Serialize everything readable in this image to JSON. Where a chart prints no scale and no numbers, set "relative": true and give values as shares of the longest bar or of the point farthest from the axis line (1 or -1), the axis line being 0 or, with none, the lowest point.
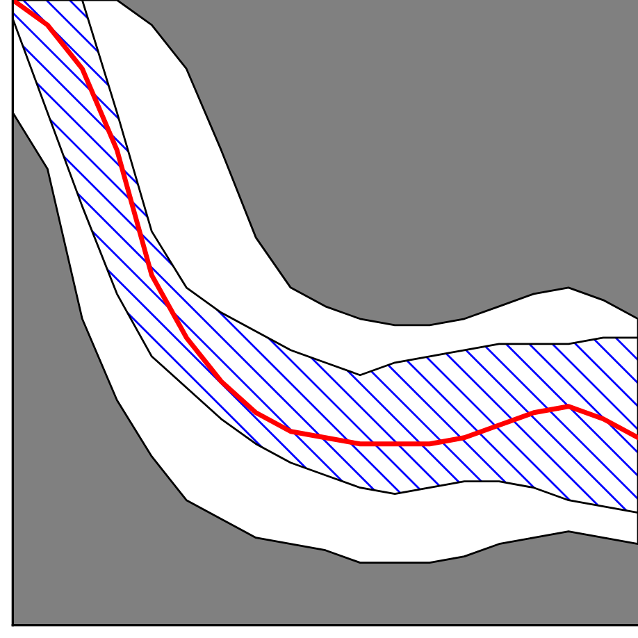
{
  "chart_data": {
    "type": "line",
    "relative": true,
    "categories": [
      null,
      null,
      null,
      null,
      null,
      null,
      null,
      null,
      null,
      null,
      null,
      null,
      null,
      null,
      null,
      null,
      null,
      null,
      null
    ],
    "series": [
      {
        "color": "#ffffff",
        "values": [
          null,
          null,
          null,
          null,
          null,
          null,
          null,
          null,
          null,
          null,
          null,
          null,
          null,
          null,
          null,
          null,
          null,
          null,
          null
        ],
        "upper": [
          1,
          1,
          1,
          1,
          0.96,
          0.89,
          0.76,
          0.62,
          0.54,
          0.51,
          0.49,
          0.48,
          0.48,
          0.49,
          0.51,
          0.53,
          0.54,
          0.52,
          0.49
        ],
        "lower": [
          0.82,
          0.73,
          0.49,
          0.36,
          0.27,
          0.2,
          0.17,
          0.14,
          0.13,
          0.12,
          0.1,
          0.1,
          0.1,
          0.11,
          0.13,
          0.14,
          0.15,
          0.14,
          0.13
        ]
      },
      {
        "type": "line",
        "color": "#ff0000",
        "values": [
          1.0,
          0.96,
          0.89,
          0.76,
          0.56,
          0.46,
          0.39,
          0.34,
          0.31,
          0.3,
          0.29,
          0.29,
          0.29,
          0.3,
          0.32,
          0.34,
          0.35,
          0.33,
          0.3
        ],
        "lower": [
          0.97,
          0.82,
          0.67,
          0.53,
          0.43,
          0.38,
          0.33,
          0.29,
          0.26,
          0.24,
          0.22,
          0.21,
          0.22,
          0.23,
          0.23,
          0.22,
          0.2,
          0.19,
          0.18
        ],
        "upper": [
          1,
          1,
          1,
          0.82,
          0.63,
          0.54,
          0.5,
          0.47,
          0.44,
          0.42,
          0.4,
          0.42,
          0.43,
          0.44,
          0.45,
          0.45,
          0.45,
          0.46,
          0.46
        ]
      }
    ]
  }
}
